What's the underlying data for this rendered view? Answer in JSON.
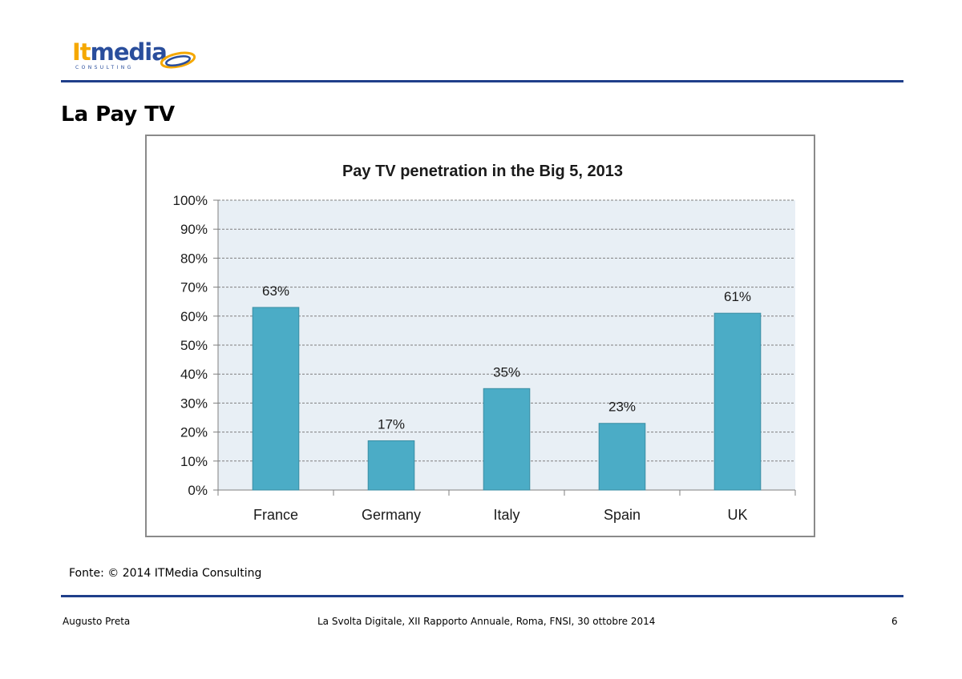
{
  "brand": {
    "logo_part1": "It",
    "logo_part2": "media",
    "logo_sub": "CONSULTING",
    "colors": {
      "accent": "#f5a800",
      "primary": "#2a4e9c",
      "rule": "#1f3f8a"
    }
  },
  "page": {
    "title": "La Pay TV"
  },
  "chart_data": {
    "type": "bar",
    "title": "Pay TV penetration in the Big 5, 2013",
    "xlabel": "",
    "ylabel": "",
    "categories": [
      "France",
      "Germany",
      "Italy",
      "Spain",
      "UK"
    ],
    "values": [
      63,
      17,
      35,
      23,
      61
    ],
    "data_labels": [
      "63%",
      "17%",
      "35%",
      "23%",
      "61%"
    ],
    "ylim": [
      0,
      100
    ],
    "yticks": [
      0,
      10,
      20,
      30,
      40,
      50,
      60,
      70,
      80,
      90,
      100
    ],
    "ytick_labels": [
      "0%",
      "10%",
      "20%",
      "30%",
      "40%",
      "50%",
      "60%",
      "70%",
      "80%",
      "90%",
      "100%"
    ],
    "grid": true,
    "legend": "none",
    "bar_color": "#4bacc6",
    "plot_background": "#e8eff5"
  },
  "source": {
    "text": "Fonte: © 2014 ITMedia Consulting"
  },
  "footer": {
    "author": "Augusto Preta",
    "event": "La Svolta Digitale, XII Rapporto Annuale, Roma, FNSI, 30 ottobre 2014",
    "page_number": "6"
  }
}
